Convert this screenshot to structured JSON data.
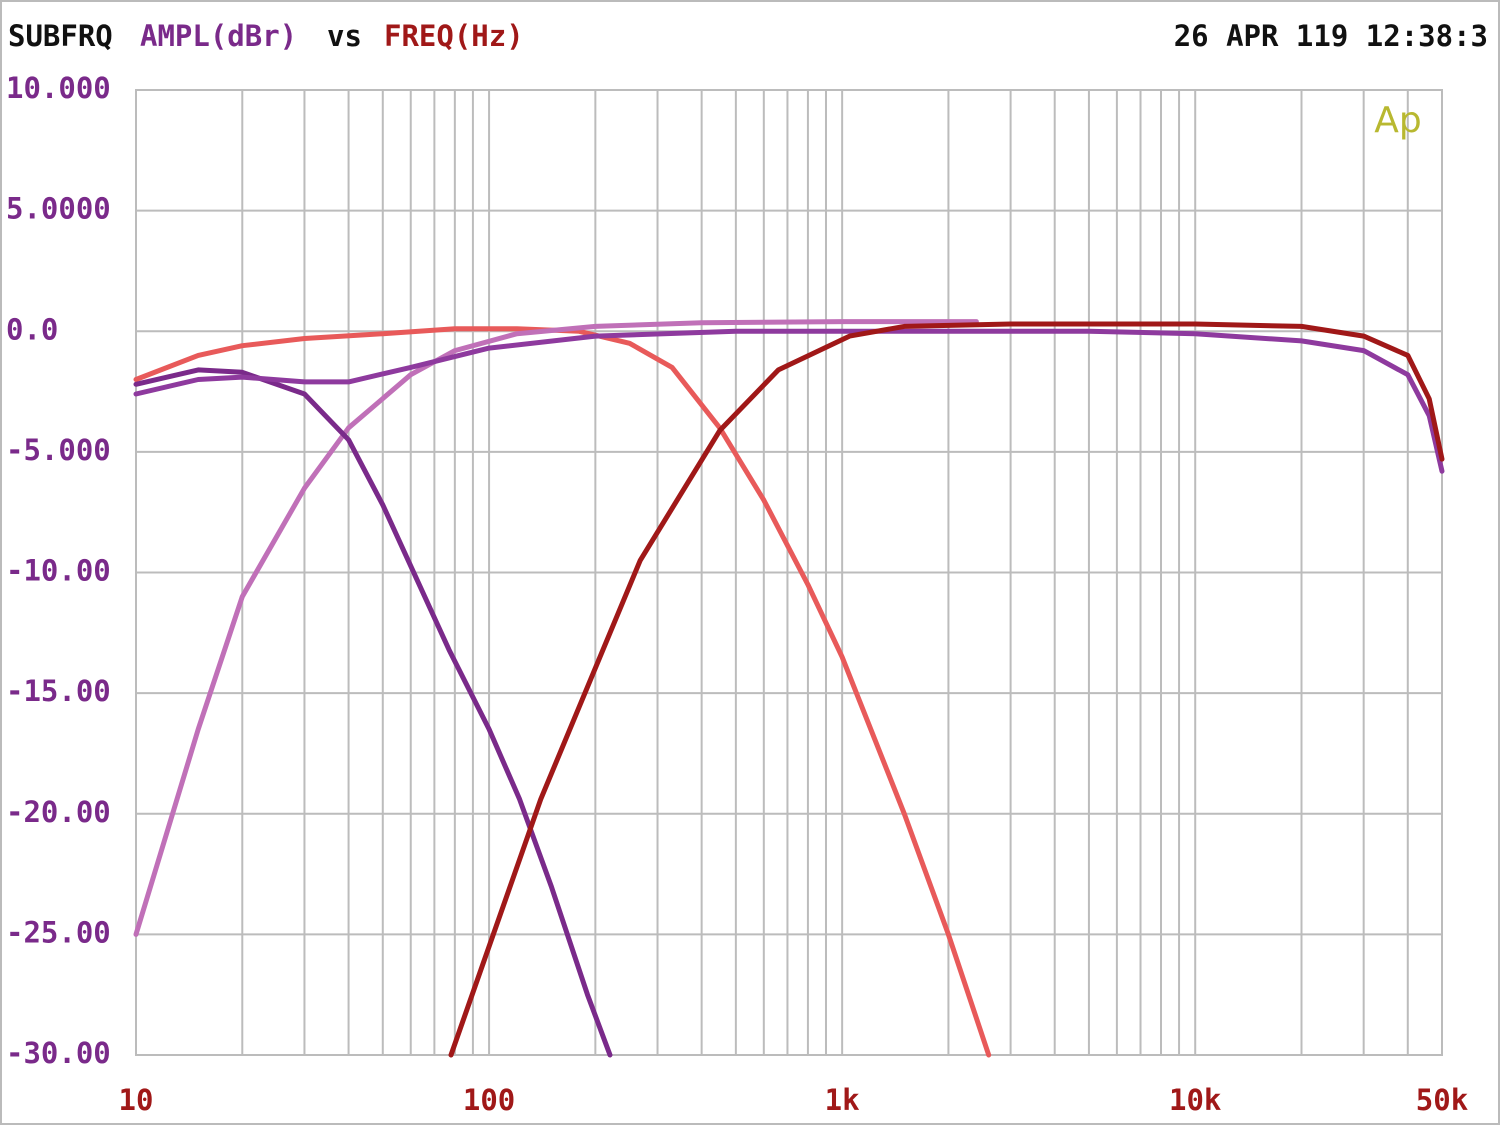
{
  "chart_data": {
    "type": "line",
    "instrument": "SUBFRQ",
    "ylabel": "AMPL(dBr)",
    "connector": "vs",
    "xlabel": "FREQ(Hz)",
    "timestamp": "26 APR 119 12:38:3",
    "logo": "Ap",
    "xscale": "log",
    "xlim": [
      10,
      50000
    ],
    "ylim": [
      -30,
      10
    ],
    "xticks": [
      10,
      100,
      {
        "value": 1000,
        "label": "1k"
      },
      {
        "value": 10000,
        "label": "10k"
      },
      {
        "value": 50000,
        "label": "50k"
      }
    ],
    "xgrid": [
      20,
      30,
      40,
      50,
      60,
      70,
      80,
      90,
      200,
      300,
      400,
      500,
      600,
      700,
      800,
      900,
      2000,
      3000,
      4000,
      5000,
      6000,
      7000,
      8000,
      9000,
      20000,
      30000,
      40000
    ],
    "yticks": [
      {
        "value": 10,
        "label": "10.000"
      },
      {
        "value": 5,
        "label": "5.0000"
      },
      {
        "value": 0,
        "label": "0.0"
      },
      {
        "value": -5,
        "label": "-5.000"
      },
      {
        "value": -10,
        "label": "-10.00"
      },
      {
        "value": -15,
        "label": "-15.00"
      },
      {
        "value": -20,
        "label": "-20.00"
      },
      {
        "value": -25,
        "label": "-25.00"
      },
      {
        "value": -30,
        "label": "-30.00"
      }
    ],
    "grid": true,
    "series": [
      {
        "color": "#e85a5a",
        "x": [
          10,
          15,
          20,
          30,
          50,
          80,
          120,
          180,
          250,
          330,
          450,
          600,
          800,
          1000,
          1500,
          2000,
          2600
        ],
        "values": [
          -2,
          -1.0,
          -0.6,
          -0.3,
          -0.1,
          0.1,
          0.1,
          0,
          -0.5,
          -1.5,
          -4,
          -7,
          -10.5,
          -13.5,
          -20,
          -25,
          -30
        ]
      },
      {
        "color": "#c070b8",
        "x": [
          10,
          15,
          20,
          30,
          40,
          60,
          80,
          120,
          200,
          400,
          1000,
          2400
        ],
        "values": [
          -25,
          -16.5,
          -11,
          -6.5,
          -4,
          -1.8,
          -0.8,
          -0.1,
          0.2,
          0.35,
          0.4,
          0.4
        ]
      },
      {
        "color": "#7a2a8a",
        "x": [
          10,
          15,
          20,
          30,
          40,
          50,
          77,
          100,
          122,
          150,
          190,
          220
        ],
        "values": [
          -2.2,
          -1.6,
          -1.7,
          -2.6,
          -4.5,
          -7.2,
          -13.2,
          -16.5,
          -19.4,
          -23,
          -27.5,
          -30
        ]
      },
      {
        "color": "#8e3a9e",
        "x": [
          10,
          15,
          20,
          30,
          40,
          60,
          100,
          200,
          500,
          1000,
          5000,
          10000,
          20000,
          30000,
          40000,
          46000,
          50000
        ],
        "values": [
          -2.6,
          -2,
          -1.9,
          -2.1,
          -2.1,
          -1.5,
          -0.7,
          -0.2,
          0,
          0,
          0,
          -0.1,
          -0.4,
          -0.8,
          -1.8,
          -3.5,
          -5.8
        ]
      },
      {
        "color": "#a01818",
        "x": [
          78,
          140,
          268,
          451,
          660,
          1050,
          1500,
          3000,
          10000,
          20000,
          30000,
          40000,
          46000,
          50000
        ],
        "values": [
          -30,
          -19.4,
          -9.5,
          -4.1,
          -1.6,
          -0.2,
          0.2,
          0.3,
          0.3,
          0.2,
          -0.2,
          -1,
          -2.8,
          -5.3
        ]
      }
    ]
  }
}
